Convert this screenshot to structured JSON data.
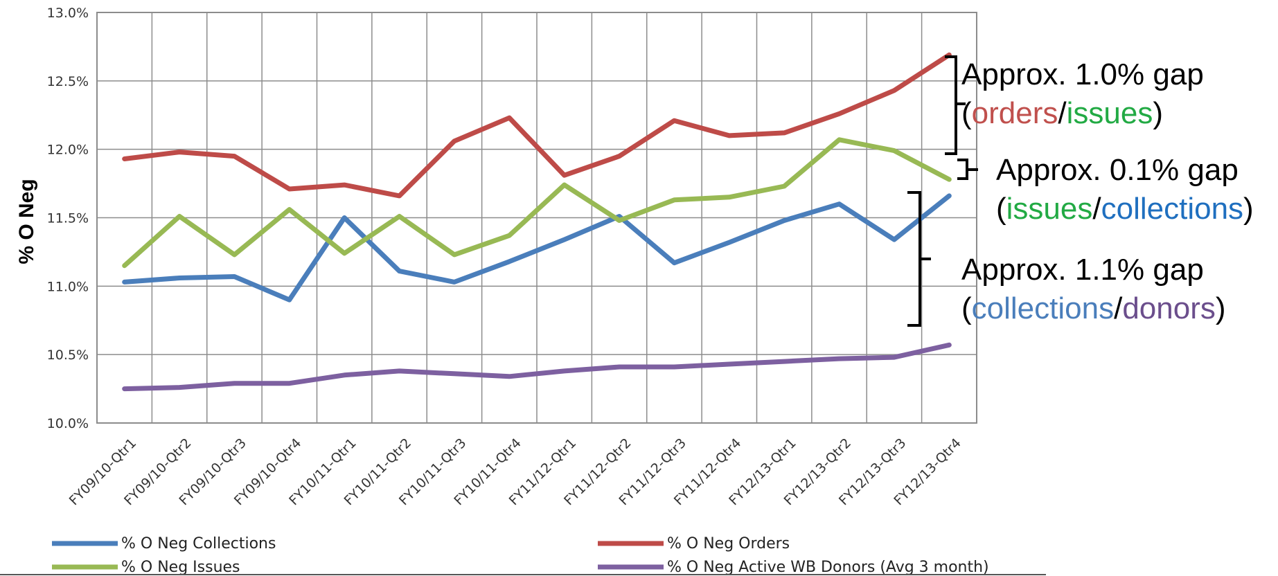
{
  "chart_data": {
    "type": "line",
    "title": "",
    "xlabel": "",
    "ylabel": "% O Neg",
    "ylim": [
      10.0,
      13.0
    ],
    "y_ticks": [
      "10.0%",
      "10.5%",
      "11.0%",
      "11.5%",
      "12.0%",
      "12.5%",
      "13.0%"
    ],
    "grid": true,
    "legend_position": "bottom",
    "categories": [
      "FY09/10-Qtr1",
      "FY09/10-Qtr2",
      "FY09/10-Qtr3",
      "FY09/10-Qtr4",
      "FY10/11-Qtr1",
      "FY10/11-Qtr2",
      "FY10/11-Qtr3",
      "FY10/11-Qtr4",
      "FY11/12-Qtr1",
      "FY11/12-Qtr2",
      "FY11/12-Qtr3",
      "FY11/12-Qtr4",
      "FY12/13-Qtr1",
      "FY12/13-Qtr2",
      "FY12/13-Qtr3",
      "FY12/13-Qtr4"
    ],
    "series": [
      {
        "name": "% O Neg Collections",
        "color": "#4a7ebb",
        "values": [
          11.03,
          11.06,
          11.07,
          10.9,
          11.5,
          11.11,
          11.03,
          11.18,
          11.34,
          11.51,
          11.17,
          11.32,
          11.48,
          11.6,
          11.34,
          11.66
        ]
      },
      {
        "name": "% O Neg Orders",
        "color": "#be4b48",
        "values": [
          11.93,
          11.98,
          11.95,
          11.71,
          11.74,
          11.66,
          12.06,
          12.23,
          11.81,
          11.95,
          12.21,
          12.1,
          12.12,
          12.26,
          12.43,
          12.69
        ]
      },
      {
        "name": "% O Neg Issues",
        "color": "#98b954",
        "values": [
          11.15,
          11.51,
          11.23,
          11.56,
          11.24,
          11.51,
          11.23,
          11.37,
          11.74,
          11.48,
          11.63,
          11.65,
          11.73,
          12.07,
          11.99,
          11.78
        ]
      },
      {
        "name": "% O Neg Active WB Donors (Avg 3 month)",
        "color": "#7d60a0",
        "values": [
          10.25,
          10.26,
          10.29,
          10.29,
          10.35,
          10.38,
          10.36,
          10.34,
          10.38,
          10.41,
          10.41,
          10.43,
          10.45,
          10.47,
          10.48,
          10.57
        ]
      }
    ],
    "legend": [
      {
        "label": "% O Neg Collections",
        "color": "#4a7ebb"
      },
      {
        "label": "% O Neg Orders",
        "color": "#be4b48"
      },
      {
        "label": "% O Neg Issues",
        "color": "#98b954"
      },
      {
        "label": "% O Neg Active WB Donors (Avg 3 month)",
        "color": "#7d60a0"
      }
    ]
  },
  "annotations": {
    "gap1": {
      "line1": "Approx. 1.0% gap",
      "open": "(",
      "a": "orders",
      "sep": "/",
      "b": "issues",
      "close": ")",
      "a_color": "#c0504d",
      "b_color": "#22aa44"
    },
    "gap2": {
      "line1": "Approx. 0.1% gap",
      "open": "(",
      "a": "issues",
      "sep": "/",
      "b": "collections",
      "close": ")",
      "a_color": "#22aa44",
      "b_color": "#1f6fbf"
    },
    "gap3": {
      "line1": "Approx. 1.1% gap",
      "open": "(",
      "a": "collections",
      "sep": "/",
      "b": "donors",
      "close": ")",
      "a_color": "#4a7ebb",
      "b_color": "#6b4e8c"
    }
  }
}
